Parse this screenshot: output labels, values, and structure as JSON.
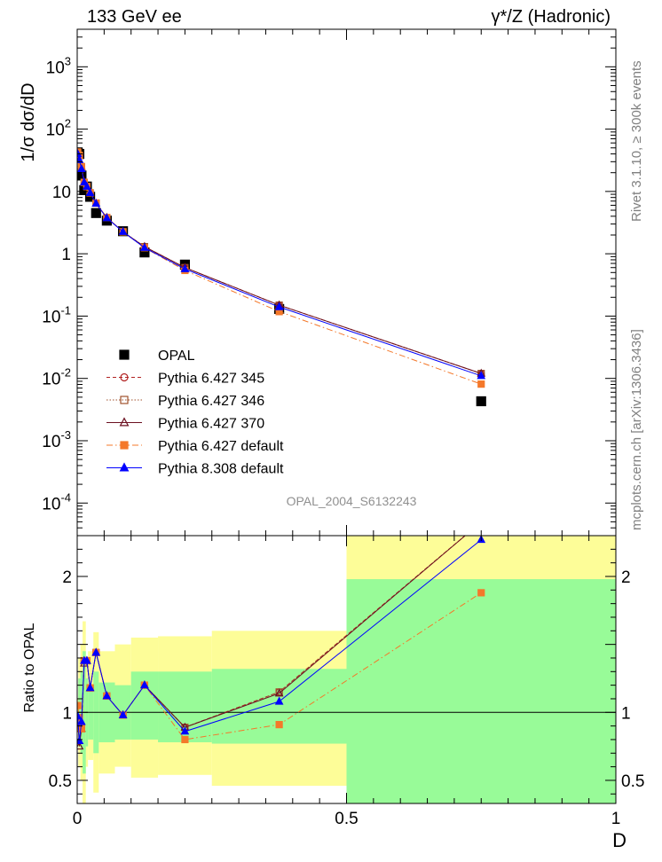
{
  "header": {
    "left": "133 GeV ee",
    "right": "γ*/Z (Hadronic)"
  },
  "side_labels": {
    "top": "Rivet 3.1.10, ≥ 300k events",
    "bottom": "mcplots.cern.ch [arXiv:1306.3436]"
  },
  "watermark": "OPAL_2004_S6132243",
  "chart_data": [
    {
      "type": "scatter",
      "panel": "main",
      "ylabel": "1/σ dσ/dD",
      "xlabel": "D",
      "log_y": true,
      "xlim": [
        0,
        1
      ],
      "ylim": [
        3e-05,
        4000
      ],
      "y_tick_labels": [
        "10^-4",
        "10^-3",
        "10^-2",
        "10^-1",
        "1",
        "10",
        "10^2",
        "10^3"
      ],
      "x": [
        0.001,
        0.004,
        0.008,
        0.013,
        0.018,
        0.024,
        0.035,
        0.055,
        0.085,
        0.125,
        0.2,
        0.375,
        0.75
      ],
      "series": [
        {
          "name": "OPAL",
          "color": "#000000",
          "marker": "square",
          "line": "none",
          "values": [
            42,
            40,
            18,
            10.5,
            12,
            8.2,
            4.5,
            3.4,
            2.3,
            1.05,
            0.67,
            0.13,
            0.0043
          ]
        },
        {
          "name": "Pythia 6.427 345",
          "color": "#b22222",
          "marker": "open-circle",
          "line": "dashed",
          "values": [
            40,
            38,
            25,
            14,
            12,
            9.5,
            6.5,
            3.8,
            2.25,
            1.3,
            0.6,
            0.15,
            0.012
          ]
        },
        {
          "name": "Pythia 6.427 346",
          "color": "#a0522d",
          "marker": "open-square",
          "line": "dotted",
          "values": [
            40,
            38,
            25,
            14,
            12,
            9.5,
            6.5,
            3.8,
            2.25,
            1.3,
            0.6,
            0.15,
            0.012
          ]
        },
        {
          "name": "Pythia 6.427 370",
          "color": "#6b1021",
          "marker": "open-triangle",
          "line": "solid",
          "values": [
            40,
            37,
            25,
            14,
            12,
            9.4,
            6.4,
            3.8,
            2.25,
            1.3,
            0.6,
            0.15,
            0.012
          ]
        },
        {
          "name": "Pythia 6.427 default",
          "color": "#f4782a",
          "marker": "square",
          "line": "dashdot",
          "values": [
            44,
            38,
            25,
            14,
            12,
            9.5,
            6.5,
            3.8,
            2.25,
            1.25,
            0.54,
            0.118,
            0.0081
          ]
        },
        {
          "name": "Pythia 8.308 default",
          "color": "#0000ff",
          "marker": "triangle",
          "line": "solid",
          "values": [
            40,
            32,
            23,
            14,
            12,
            9.5,
            6.4,
            3.75,
            2.25,
            1.25,
            0.57,
            0.14,
            0.011
          ]
        }
      ]
    },
    {
      "type": "line",
      "panel": "ratio",
      "ylabel": "Ratio to OPAL",
      "xlabel": "D",
      "xlim": [
        0,
        1
      ],
      "ylim": [
        0.33,
        2.3
      ],
      "y_tick_labels": [
        "0.5",
        "1",
        "2"
      ],
      "x_tick_labels": [
        "0",
        "0.5",
        "1"
      ],
      "bands": [
        {
          "x0": 0.0,
          "x1": 0.002,
          "inner": [
            0.95,
            1.05
          ],
          "outer": [
            0.9,
            1.1
          ]
        },
        {
          "x0": 0.002,
          "x1": 0.006,
          "inner": [
            0.75,
            1.25
          ],
          "outer": [
            0.6,
            1.4
          ]
        },
        {
          "x0": 0.006,
          "x1": 0.01,
          "inner": [
            0.7,
            1.3
          ],
          "outer": [
            0.5,
            1.5
          ]
        },
        {
          "x0": 0.01,
          "x1": 0.016,
          "inner": [
            0.55,
            1.45
          ],
          "outer": [
            0.33,
            1.67
          ]
        },
        {
          "x0": 0.016,
          "x1": 0.02,
          "inner": [
            0.75,
            1.25
          ],
          "outer": [
            0.6,
            1.4
          ]
        },
        {
          "x0": 0.02,
          "x1": 0.03,
          "inner": [
            0.8,
            1.2
          ],
          "outer": [
            0.65,
            1.45
          ]
        },
        {
          "x0": 0.03,
          "x1": 0.04,
          "inner": [
            0.7,
            1.3
          ],
          "outer": [
            0.41,
            1.59
          ]
        },
        {
          "x0": 0.04,
          "x1": 0.07,
          "inner": [
            0.78,
            1.22
          ],
          "outer": [
            0.55,
            1.45
          ]
        },
        {
          "x0": 0.07,
          "x1": 0.1,
          "inner": [
            0.8,
            1.2
          ],
          "outer": [
            0.6,
            1.5
          ]
        },
        {
          "x0": 0.1,
          "x1": 0.15,
          "inner": [
            0.8,
            1.3
          ],
          "outer": [
            0.52,
            1.55
          ]
        },
        {
          "x0": 0.15,
          "x1": 0.25,
          "inner": [
            0.78,
            1.3
          ],
          "outer": [
            0.54,
            1.56
          ]
        },
        {
          "x0": 0.25,
          "x1": 0.5,
          "inner": [
            0.77,
            1.32
          ],
          "outer": [
            0.46,
            1.6
          ]
        },
        {
          "x0": 0.5,
          "x1": 1.0,
          "inner": [
            0.33,
            1.98
          ],
          "outer": [
            0.33,
            2.3
          ]
        }
      ],
      "band_colors": {
        "inner": "#98fb98",
        "outer": "#fdfd98"
      },
      "x": [
        0.001,
        0.004,
        0.008,
        0.013,
        0.018,
        0.024,
        0.035,
        0.055,
        0.085,
        0.125,
        0.2,
        0.375,
        0.75
      ],
      "series": [
        {
          "name": "Pythia 6.427 345",
          "color": "#b22222",
          "marker": "open-circle",
          "line": "dashed",
          "values": [
            0.96,
            0.96,
            0.88,
            1.38,
            1.38,
            1.18,
            1.44,
            1.12,
            0.98,
            1.2,
            0.89,
            1.15,
            2.4
          ]
        },
        {
          "name": "Pythia 6.427 346",
          "color": "#a0522d",
          "marker": "open-square",
          "line": "dotted",
          "values": [
            0.96,
            0.96,
            0.88,
            1.38,
            1.38,
            1.18,
            1.44,
            1.12,
            0.98,
            1.2,
            0.89,
            1.15,
            2.4
          ]
        },
        {
          "name": "Pythia 6.427 370",
          "color": "#6b1021",
          "marker": "open-triangle",
          "line": "solid",
          "values": [
            0.96,
            0.75,
            0.88,
            1.36,
            1.38,
            1.18,
            1.44,
            1.12,
            0.98,
            1.2,
            0.89,
            1.14,
            2.4
          ]
        },
        {
          "name": "Pythia 6.427 default",
          "color": "#f4782a",
          "marker": "square",
          "line": "dashdot",
          "values": [
            1.05,
            0.96,
            0.88,
            1.38,
            1.38,
            1.18,
            1.44,
            1.12,
            0.98,
            1.2,
            0.8,
            0.91,
            1.88
          ]
        },
        {
          "name": "Pythia 8.308 default",
          "color": "#0000ff",
          "marker": "triangle",
          "line": "solid",
          "values": [
            0.97,
            0.79,
            0.93,
            1.38,
            1.38,
            1.18,
            1.44,
            1.12,
            0.98,
            1.2,
            0.86,
            1.08,
            2.27
          ]
        }
      ]
    }
  ]
}
